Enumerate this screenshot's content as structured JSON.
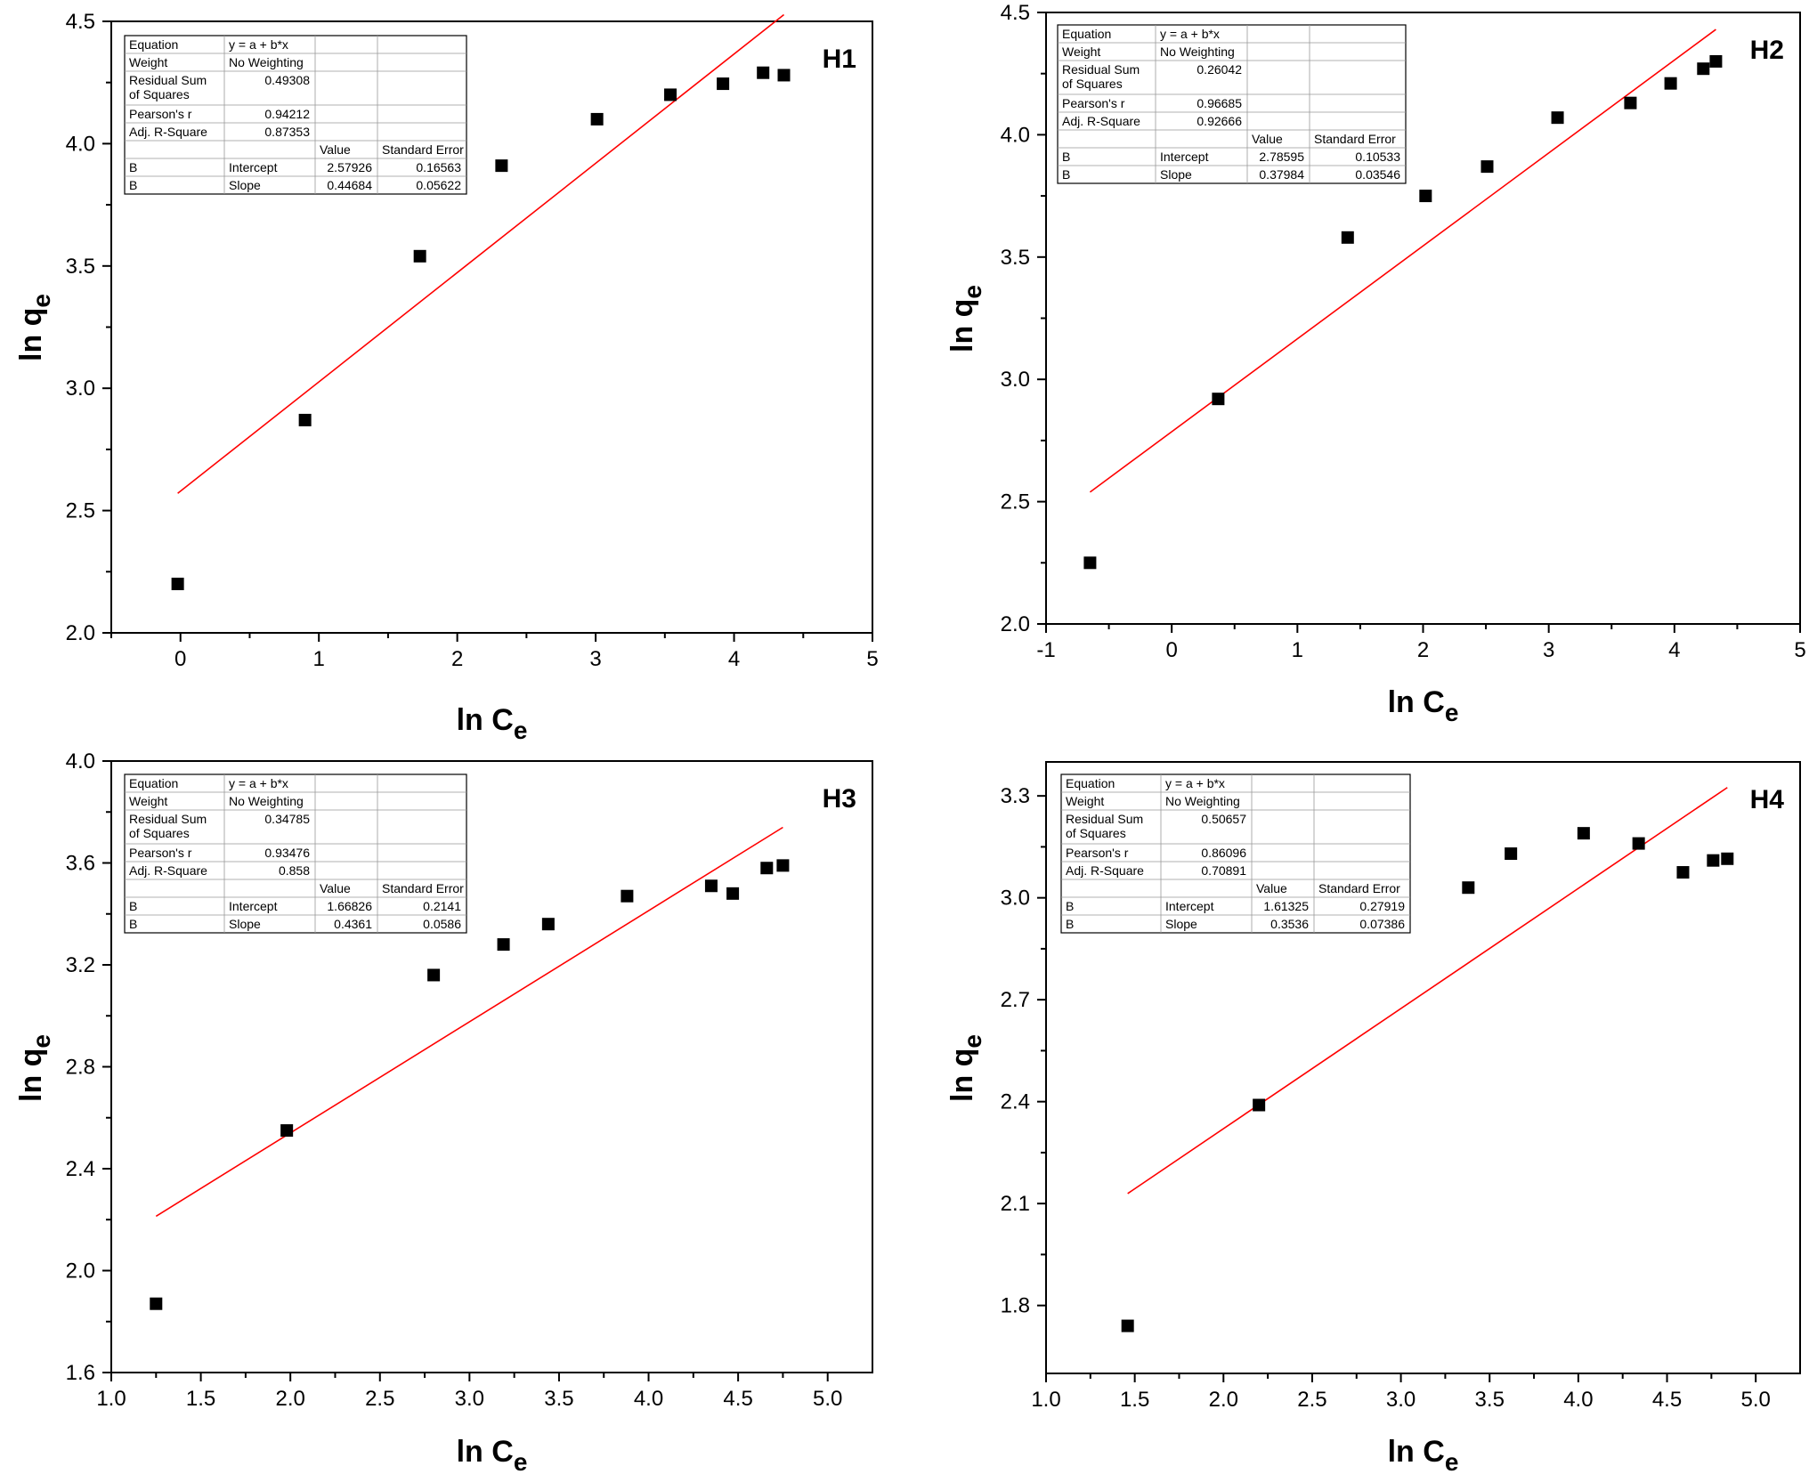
{
  "chart_data": [
    {
      "type": "scatter",
      "panel_label": "H1",
      "xlabel": "ln C",
      "xlabel_sub": "e",
      "ylabel": "ln q",
      "ylabel_sub": "e",
      "xlim": [
        -0.5,
        5
      ],
      "ylim": [
        2.0,
        4.5
      ],
      "xticks": [
        {
          "v": 0,
          "l": "0"
        },
        {
          "v": 1,
          "l": "1"
        },
        {
          "v": 2,
          "l": "2"
        },
        {
          "v": 3,
          "l": "3"
        },
        {
          "v": 4,
          "l": "4"
        },
        {
          "v": 5,
          "l": "5"
        }
      ],
      "yticks": [
        {
          "v": 2.0,
          "l": "2.0"
        },
        {
          "v": 2.5,
          "l": "2.5"
        },
        {
          "v": 3.0,
          "l": "3.0"
        },
        {
          "v": 3.5,
          "l": "3.5"
        },
        {
          "v": 4.0,
          "l": "4.0"
        },
        {
          "v": 4.5,
          "l": "4.5"
        }
      ],
      "points": [
        [
          -0.02,
          2.2
        ],
        [
          0.9,
          2.87
        ],
        [
          1.73,
          3.54
        ],
        [
          2.32,
          3.91
        ],
        [
          3.01,
          4.1
        ],
        [
          3.54,
          4.2
        ],
        [
          3.92,
          4.245
        ],
        [
          4.21,
          4.29
        ],
        [
          4.36,
          4.28
        ]
      ],
      "fit": {
        "x": [
          -0.02,
          4.36
        ],
        "color": "#ff0000"
      },
      "table": [
        [
          "Equation",
          "y = a + b*x",
          "",
          ""
        ],
        [
          "Weight",
          "No Weighting",
          "",
          ""
        ],
        [
          "Residual Sum\nof Squares",
          "0.49308",
          "",
          ""
        ],
        [
          "Pearson's r",
          "0.94212",
          "",
          ""
        ],
        [
          "Adj. R-Square",
          "0.87353",
          "",
          ""
        ],
        [
          "",
          "",
          "Value",
          "Standard Error"
        ],
        [
          "B",
          "Intercept",
          "2.57926",
          "0.16563"
        ],
        [
          "B",
          "Slope",
          "0.44684",
          "0.05622"
        ]
      ],
      "intercept": 2.57926,
      "slope": 0.44684
    },
    {
      "type": "scatter",
      "panel_label": "H2",
      "xlabel": "ln C",
      "xlabel_sub": "e",
      "ylabel": "ln q",
      "ylabel_sub": "e",
      "xlim": [
        -1,
        5
      ],
      "ylim": [
        2.0,
        4.5
      ],
      "xticks": [
        {
          "v": -1,
          "l": "-1"
        },
        {
          "v": 0,
          "l": "0"
        },
        {
          "v": 1,
          "l": "1"
        },
        {
          "v": 2,
          "l": "2"
        },
        {
          "v": 3,
          "l": "3"
        },
        {
          "v": 4,
          "l": "4"
        },
        {
          "v": 5,
          "l": "5"
        }
      ],
      "yticks": [
        {
          "v": 2.0,
          "l": "2.0"
        },
        {
          "v": 2.5,
          "l": "2.5"
        },
        {
          "v": 3.0,
          "l": "3.0"
        },
        {
          "v": 3.5,
          "l": "3.5"
        },
        {
          "v": 4.0,
          "l": "4.0"
        },
        {
          "v": 4.5,
          "l": "4.5"
        }
      ],
      "points": [
        [
          -0.65,
          2.25
        ],
        [
          0.37,
          2.92
        ],
        [
          1.4,
          3.58
        ],
        [
          2.02,
          3.75
        ],
        [
          2.51,
          3.87
        ],
        [
          3.07,
          4.07
        ],
        [
          3.65,
          4.13
        ],
        [
          3.97,
          4.21
        ],
        [
          4.23,
          4.27
        ],
        [
          4.33,
          4.3
        ]
      ],
      "fit": {
        "x": [
          -0.65,
          4.33
        ],
        "color": "#ff0000"
      },
      "table": [
        [
          "Equation",
          "y = a + b*x",
          "",
          ""
        ],
        [
          "Weight",
          "No Weighting",
          "",
          ""
        ],
        [
          "Residual Sum\nof Squares",
          "0.26042",
          "",
          ""
        ],
        [
          "Pearson's r",
          "0.96685",
          "",
          ""
        ],
        [
          "Adj. R-Square",
          "0.92666",
          "",
          ""
        ],
        [
          "",
          "",
          "Value",
          "Standard Error"
        ],
        [
          "B",
          "Intercept",
          "2.78595",
          "0.10533"
        ],
        [
          "B",
          "Slope",
          "0.37984",
          "0.03546"
        ]
      ],
      "intercept": 2.78595,
      "slope": 0.37984
    },
    {
      "type": "scatter",
      "panel_label": "H3",
      "xlabel": "ln C",
      "xlabel_sub": "e",
      "ylabel": "ln q",
      "ylabel_sub": "e",
      "xlim": [
        1.0,
        5.25
      ],
      "ylim": [
        1.6,
        4.0
      ],
      "xticks": [
        {
          "v": 1.0,
          "l": "1.0"
        },
        {
          "v": 1.5,
          "l": "1.5"
        },
        {
          "v": 2.0,
          "l": "2.0"
        },
        {
          "v": 2.5,
          "l": "2.5"
        },
        {
          "v": 3.0,
          "l": "3.0"
        },
        {
          "v": 3.5,
          "l": "3.5"
        },
        {
          "v": 4.0,
          "l": "4.0"
        },
        {
          "v": 4.5,
          "l": "4.5"
        },
        {
          "v": 5.0,
          "l": "5.0"
        }
      ],
      "yticks": [
        {
          "v": 1.6,
          "l": "1.6"
        },
        {
          "v": 2.0,
          "l": "2.0"
        },
        {
          "v": 2.4,
          "l": "2.4"
        },
        {
          "v": 2.8,
          "l": "2.8"
        },
        {
          "v": 3.2,
          "l": "3.2"
        },
        {
          "v": 3.6,
          "l": "3.6"
        },
        {
          "v": 4.0,
          "l": "4.0"
        }
      ],
      "points": [
        [
          1.25,
          1.87
        ],
        [
          1.98,
          2.55
        ],
        [
          2.8,
          3.16
        ],
        [
          3.19,
          3.28
        ],
        [
          3.44,
          3.36
        ],
        [
          3.88,
          3.47
        ],
        [
          4.35,
          3.51
        ],
        [
          4.47,
          3.48
        ],
        [
          4.66,
          3.58
        ],
        [
          4.75,
          3.59
        ]
      ],
      "fit": {
        "x": [
          1.25,
          4.75
        ],
        "color": "#ff0000"
      },
      "table": [
        [
          "Equation",
          "y = a + b*x",
          "",
          ""
        ],
        [
          "Weight",
          "No Weighting",
          "",
          ""
        ],
        [
          "Residual Sum\nof Squares",
          "0.34785",
          "",
          ""
        ],
        [
          "Pearson's r",
          "0.93476",
          "",
          ""
        ],
        [
          "Adj. R-Square",
          "0.858",
          "",
          ""
        ],
        [
          "",
          "",
          "Value",
          "Standard Error"
        ],
        [
          "B",
          "Intercept",
          "1.66826",
          "0.2141"
        ],
        [
          "B",
          "Slope",
          "0.4361",
          "0.0586"
        ]
      ],
      "intercept": 1.66826,
      "slope": 0.4361
    },
    {
      "type": "scatter",
      "panel_label": "H4",
      "xlabel": "ln C",
      "xlabel_sub": "e",
      "ylabel": "ln q",
      "ylabel_sub": "e",
      "xlim": [
        1.0,
        5.25
      ],
      "ylim": [
        1.6,
        3.4
      ],
      "xticks": [
        {
          "v": 1.0,
          "l": "1.0"
        },
        {
          "v": 1.5,
          "l": "1.5"
        },
        {
          "v": 2.0,
          "l": "2.0"
        },
        {
          "v": 2.5,
          "l": "2.5"
        },
        {
          "v": 3.0,
          "l": "3.0"
        },
        {
          "v": 3.5,
          "l": "3.5"
        },
        {
          "v": 4.0,
          "l": "4.0"
        },
        {
          "v": 4.5,
          "l": "4.5"
        },
        {
          "v": 5.0,
          "l": "5.0"
        }
      ],
      "yticks": [
        {
          "v": 1.8,
          "l": "1.8"
        },
        {
          "v": 2.1,
          "l": "2.1"
        },
        {
          "v": 2.4,
          "l": "2.4"
        },
        {
          "v": 2.7,
          "l": "2.7"
        },
        {
          "v": 3.0,
          "l": "3.0"
        },
        {
          "v": 3.3,
          "l": "3.3"
        }
      ],
      "points": [
        [
          1.46,
          1.74
        ],
        [
          2.2,
          2.39
        ],
        [
          3.38,
          3.03
        ],
        [
          3.62,
          3.13
        ],
        [
          4.03,
          3.19
        ],
        [
          4.34,
          3.16
        ],
        [
          4.59,
          3.075
        ],
        [
          4.76,
          3.11
        ],
        [
          4.84,
          3.115
        ]
      ],
      "fit": {
        "x": [
          1.46,
          4.84
        ],
        "color": "#ff0000"
      },
      "table": [
        [
          "Equation",
          "y = a + b*x",
          "",
          ""
        ],
        [
          "Weight",
          "No Weighting",
          "",
          ""
        ],
        [
          "Residual Sum\nof Squares",
          "0.50657",
          "",
          ""
        ],
        [
          "Pearson's r",
          "0.86096",
          "",
          ""
        ],
        [
          "Adj. R-Square",
          "0.70891",
          "",
          ""
        ],
        [
          "",
          "",
          "Value",
          "Standard Error"
        ],
        [
          "B",
          "Intercept",
          "1.61325",
          "0.27919"
        ],
        [
          "B",
          "Slope",
          "0.3536",
          "0.07386"
        ]
      ],
      "intercept": 1.61325,
      "slope": 0.3536
    }
  ]
}
